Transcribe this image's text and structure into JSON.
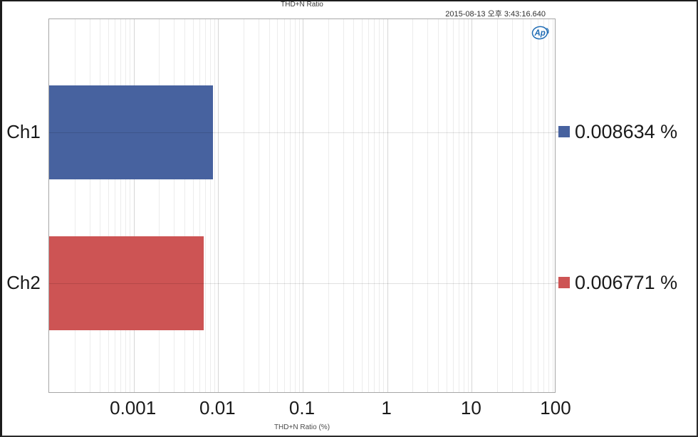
{
  "header": {
    "title": "THD+N Ratio",
    "timestamp": "2015-08-13 오후 3:43:16.640"
  },
  "logo": {
    "label": "Ap",
    "color": "#1f6cb5"
  },
  "chart_data": {
    "type": "bar",
    "orientation": "horizontal",
    "title": "THD+N Ratio",
    "xlabel": "THD+N Ratio (%)",
    "x_scale": "log",
    "xlim": [
      0.0001,
      100
    ],
    "grid": true,
    "legend_position": "right",
    "x_ticks": [
      {
        "value": 0.001,
        "label": "0.001"
      },
      {
        "value": 0.01,
        "label": "0.01"
      },
      {
        "value": 0.1,
        "label": "0.1"
      },
      {
        "value": 1,
        "label": "1"
      },
      {
        "value": 10,
        "label": "10"
      },
      {
        "value": 100,
        "label": "100"
      }
    ],
    "series": [
      {
        "name": "Ch1",
        "value": 0.008634,
        "label": "0.008634 %",
        "color": "#47629f"
      },
      {
        "name": "Ch2",
        "value": 0.006771,
        "label": "0.006771 %",
        "color": "#cd5454"
      }
    ],
    "colors": {
      "grid_major": "#d6d6d6",
      "grid_minor": "#ececec",
      "plot_border": "#a6a6a6"
    }
  }
}
